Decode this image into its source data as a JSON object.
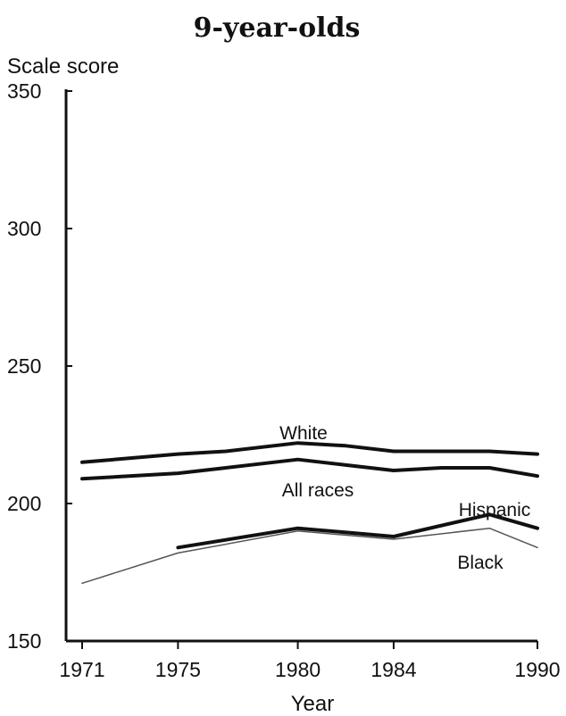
{
  "chart_data": {
    "type": "line",
    "title": "9-year-olds",
    "xlabel": "Year",
    "ylabel": "Scale score",
    "xlim": [
      1971,
      1990
    ],
    "ylim": [
      150,
      350
    ],
    "xticks": [
      1971,
      1975,
      1980,
      1984,
      1990
    ],
    "yticks": [
      150,
      200,
      250,
      300,
      350
    ],
    "grid": false,
    "series": [
      {
        "name": "White",
        "color": "#111111",
        "style": "thick",
        "x": [
          1971,
          1975,
          1977,
          1980,
          1982,
          1984,
          1986,
          1988,
          1990
        ],
        "y": [
          215,
          218,
          219,
          222,
          221,
          219,
          219,
          219,
          218
        ]
      },
      {
        "name": "All races",
        "color": "#111111",
        "style": "thick",
        "x": [
          1971,
          1975,
          1977,
          1980,
          1982,
          1984,
          1986,
          1988,
          1990
        ],
        "y": [
          209,
          211,
          213,
          216,
          214,
          212,
          213,
          213,
          210
        ]
      },
      {
        "name": "Hispanic",
        "color": "#111111",
        "style": "thick",
        "x": [
          1975,
          1980,
          1984,
          1988,
          1990
        ],
        "y": [
          184,
          191,
          188,
          196,
          191
        ]
      },
      {
        "name": "Black",
        "color": "#555555",
        "style": "thin",
        "x": [
          1971,
          1975,
          1980,
          1984,
          1988,
          1990
        ],
        "y": [
          171,
          182,
          190,
          187,
          191,
          184
        ]
      }
    ]
  }
}
